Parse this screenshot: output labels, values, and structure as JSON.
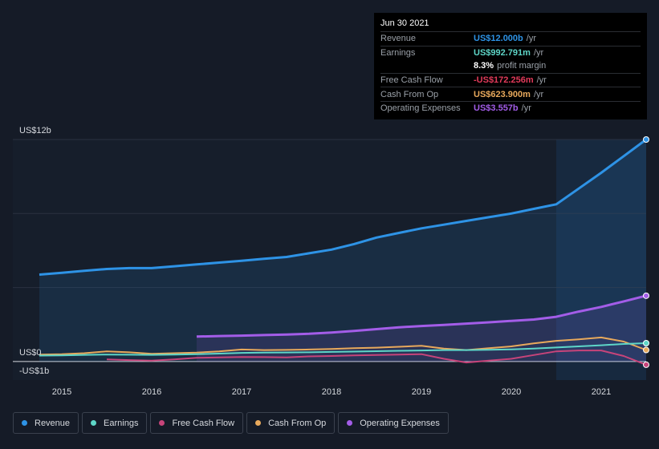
{
  "tooltip": {
    "date": "Jun 30 2021",
    "rows": [
      {
        "label": "Revenue",
        "value": "US$12.000b",
        "unit": "/yr",
        "color": "#2e93e6"
      },
      {
        "label": "Earnings",
        "value": "US$992.791m",
        "unit": "/yr",
        "color": "#5ed6c8"
      },
      {
        "label": "",
        "value": "8.3%",
        "unit": "profit margin",
        "color": "#ffffff"
      },
      {
        "label": "Free Cash Flow",
        "value": "-US$172.256m",
        "unit": "/yr",
        "color": "#e23a5a"
      },
      {
        "label": "Cash From Op",
        "value": "US$623.900m",
        "unit": "/yr",
        "color": "#e8a95c"
      },
      {
        "label": "Operating Expenses",
        "value": "US$3.557b",
        "unit": "/yr",
        "color": "#a35de8"
      }
    ]
  },
  "axis": {
    "y_top_label": "US$12b",
    "y_zero_label": "US$0",
    "y_bottom_label": "-US$1b"
  },
  "legend": [
    {
      "label": "Revenue",
      "color": "#2e93e6"
    },
    {
      "label": "Earnings",
      "color": "#5ed6c8"
    },
    {
      "label": "Free Cash Flow",
      "color": "#c7447a"
    },
    {
      "label": "Cash From Op",
      "color": "#e8a95c"
    },
    {
      "label": "Operating Expenses",
      "color": "#a35de8"
    }
  ],
  "chart_data": {
    "type": "line",
    "ylim": [
      -1,
      12
    ],
    "ylabel": "",
    "xlabel": "",
    "x_ticks": [
      "2015",
      "2016",
      "2017",
      "2018",
      "2019",
      "2020",
      "2021"
    ],
    "highlight_start": 2020.5,
    "series": [
      {
        "name": "Revenue",
        "color": "#2e93e6",
        "fill": true,
        "x": [
          2014.75,
          2015.0,
          2015.25,
          2015.5,
          2015.75,
          2016.0,
          2016.25,
          2016.5,
          2016.75,
          2017.0,
          2017.25,
          2017.5,
          2017.75,
          2018.0,
          2018.25,
          2018.5,
          2018.75,
          2019.0,
          2019.25,
          2019.5,
          2019.75,
          2020.0,
          2020.25,
          2020.5,
          2020.75,
          2021.0,
          2021.25,
          2021.5
        ],
        "y": [
          4.7,
          4.8,
          4.9,
          5.0,
          5.05,
          5.05,
          5.15,
          5.25,
          5.35,
          5.45,
          5.55,
          5.65,
          5.85,
          6.05,
          6.35,
          6.7,
          6.95,
          7.2,
          7.4,
          7.6,
          7.8,
          8.0,
          8.25,
          8.5,
          9.35,
          10.2,
          11.1,
          12.0
        ]
      },
      {
        "name": "Operating Expenses",
        "color": "#a35de8",
        "fill": true,
        "x": [
          2016.5,
          2016.75,
          2017.0,
          2017.25,
          2017.5,
          2017.75,
          2018.0,
          2018.25,
          2018.5,
          2018.75,
          2019.0,
          2019.25,
          2019.5,
          2019.75,
          2020.0,
          2020.25,
          2020.5,
          2020.75,
          2021.0,
          2021.25,
          2021.5
        ],
        "y": [
          1.35,
          1.38,
          1.4,
          1.43,
          1.46,
          1.5,
          1.57,
          1.65,
          1.75,
          1.85,
          1.92,
          1.98,
          2.05,
          2.12,
          2.2,
          2.27,
          2.42,
          2.7,
          2.95,
          3.25,
          3.557
        ]
      },
      {
        "name": "Cash From Op",
        "color": "#e8a95c",
        "fill": false,
        "x": [
          2014.75,
          2015.0,
          2015.25,
          2015.5,
          2015.75,
          2016.0,
          2016.25,
          2016.5,
          2016.75,
          2017.0,
          2017.25,
          2017.5,
          2017.75,
          2018.0,
          2018.25,
          2018.5,
          2018.75,
          2019.0,
          2019.25,
          2019.5,
          2019.75,
          2020.0,
          2020.25,
          2020.5,
          2020.75,
          2021.0,
          2021.25,
          2021.5
        ],
        "y": [
          0.38,
          0.4,
          0.45,
          0.55,
          0.5,
          0.42,
          0.45,
          0.48,
          0.55,
          0.65,
          0.62,
          0.63,
          0.65,
          0.68,
          0.72,
          0.75,
          0.8,
          0.85,
          0.7,
          0.62,
          0.72,
          0.82,
          0.98,
          1.12,
          1.2,
          1.3,
          1.08,
          0.624
        ]
      },
      {
        "name": "Earnings",
        "color": "#5ed6c8",
        "fill": false,
        "x": [
          2014.75,
          2015.0,
          2015.25,
          2015.5,
          2015.75,
          2016.0,
          2016.25,
          2016.5,
          2016.75,
          2017.0,
          2017.25,
          2017.5,
          2017.75,
          2018.0,
          2018.25,
          2018.5,
          2018.75,
          2019.0,
          2019.25,
          2019.5,
          2019.75,
          2020.0,
          2020.25,
          2020.5,
          2020.75,
          2021.0,
          2021.25,
          2021.5
        ],
        "y": [
          0.32,
          0.33,
          0.36,
          0.38,
          0.37,
          0.36,
          0.38,
          0.4,
          0.43,
          0.47,
          0.48,
          0.49,
          0.5,
          0.52,
          0.54,
          0.56,
          0.58,
          0.6,
          0.62,
          0.62,
          0.64,
          0.66,
          0.7,
          0.76,
          0.82,
          0.88,
          0.95,
          0.993
        ]
      },
      {
        "name": "Free Cash Flow",
        "color": "#c7447a",
        "fill": false,
        "x": [
          2015.5,
          2015.75,
          2016.0,
          2016.25,
          2016.5,
          2016.75,
          2017.0,
          2017.25,
          2017.5,
          2017.75,
          2018.0,
          2018.25,
          2018.5,
          2018.75,
          2019.0,
          2019.25,
          2019.5,
          2019.75,
          2020.0,
          2020.25,
          2020.5,
          2020.75,
          2021.0,
          2021.25,
          2021.5
        ],
        "y": [
          0.12,
          0.08,
          0.05,
          0.12,
          0.2,
          0.22,
          0.25,
          0.24,
          0.22,
          0.28,
          0.3,
          0.33,
          0.35,
          0.38,
          0.4,
          0.15,
          -0.05,
          0.05,
          0.15,
          0.35,
          0.55,
          0.6,
          0.6,
          0.3,
          -0.172
        ]
      }
    ]
  }
}
